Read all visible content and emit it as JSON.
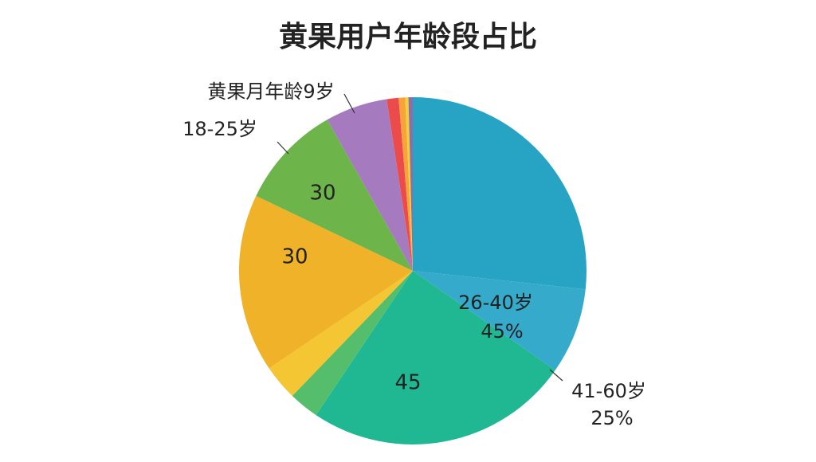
{
  "chart_data": {
    "type": "pie",
    "title": "黄果用户年龄段占比",
    "values": [
      26.7,
      8,
      24.7,
      2.8,
      3.3,
      16.6,
      9.7,
      5.8,
      1.1,
      0.6,
      0.3,
      0.4
    ],
    "colors": [
      "#27a3c4",
      "#35aaca",
      "#20b893",
      "#55be6c",
      "#f4c633",
      "#f0b228",
      "#6db54b",
      "#a57abe",
      "#ec4b4b",
      "#f7a33a",
      "#f2d03a",
      "#8b6fa8"
    ],
    "annotations": [
      "黄果月年龄9岁",
      "18-25岁",
      "26-40岁",
      "45%",
      "41-60岁",
      "25%",
      "30",
      "30",
      "45"
    ]
  }
}
